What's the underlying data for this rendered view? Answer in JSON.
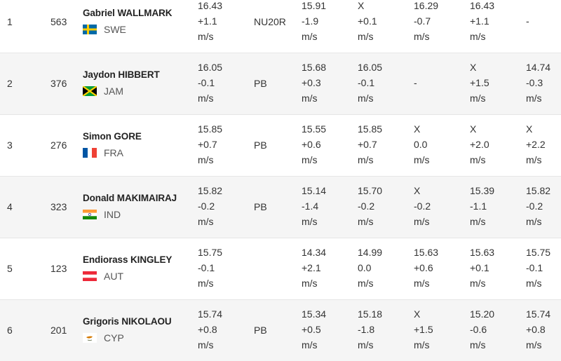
{
  "rows": [
    {
      "rank": "1",
      "bib": "563",
      "name": "Gabriel WALLMARK",
      "country": "SWE",
      "flag": "sweden-flag",
      "best": {
        "dist": "16.43",
        "wind": "+1.1",
        "unit": "m/s"
      },
      "note": "NU20R",
      "attempts": [
        {
          "dist": "15.91",
          "wind": "-1.9",
          "unit": "m/s"
        },
        {
          "dist": "X",
          "wind": "+0.1",
          "unit": "m/s"
        },
        {
          "dist": "16.29",
          "wind": "-0.7",
          "unit": "m/s"
        },
        {
          "dist": "16.43",
          "wind": "+1.1",
          "unit": "m/s"
        },
        {
          "dist": "",
          "wind": "-",
          "unit": ""
        }
      ]
    },
    {
      "rank": "2",
      "bib": "376",
      "name": "Jaydon HIBBERT",
      "country": "JAM",
      "flag": "jamaica-flag",
      "best": {
        "dist": "16.05",
        "wind": "-0.1",
        "unit": "m/s"
      },
      "note": "PB",
      "attempts": [
        {
          "dist": "15.68",
          "wind": "+0.3",
          "unit": "m/s"
        },
        {
          "dist": "16.05",
          "wind": "-0.1",
          "unit": "m/s"
        },
        {
          "dist": "",
          "wind": "-",
          "unit": ""
        },
        {
          "dist": "X",
          "wind": "+1.5",
          "unit": "m/s"
        },
        {
          "dist": "14.74",
          "wind": "-0.3",
          "unit": "m/s"
        }
      ]
    },
    {
      "rank": "3",
      "bib": "276",
      "name": "Simon GORE",
      "country": "FRA",
      "flag": "france-flag",
      "best": {
        "dist": "15.85",
        "wind": "+0.7",
        "unit": "m/s"
      },
      "note": "PB",
      "attempts": [
        {
          "dist": "15.55",
          "wind": "+0.6",
          "unit": "m/s"
        },
        {
          "dist": "15.85",
          "wind": "+0.7",
          "unit": "m/s"
        },
        {
          "dist": "X",
          "wind": "0.0",
          "unit": "m/s"
        },
        {
          "dist": "X",
          "wind": "+2.0",
          "unit": "m/s"
        },
        {
          "dist": "X",
          "wind": "+2.2",
          "unit": "m/s"
        }
      ]
    },
    {
      "rank": "4",
      "bib": "323",
      "name": "Donald MAKIMAIRAJ",
      "country": "IND",
      "flag": "india-flag",
      "best": {
        "dist": "15.82",
        "wind": "-0.2",
        "unit": "m/s"
      },
      "note": "PB",
      "attempts": [
        {
          "dist": "15.14",
          "wind": "-1.4",
          "unit": "m/s"
        },
        {
          "dist": "15.70",
          "wind": "-0.2",
          "unit": "m/s"
        },
        {
          "dist": "X",
          "wind": "-0.2",
          "unit": "m/s"
        },
        {
          "dist": "15.39",
          "wind": "-1.1",
          "unit": "m/s"
        },
        {
          "dist": "15.82",
          "wind": "-0.2",
          "unit": "m/s"
        }
      ]
    },
    {
      "rank": "5",
      "bib": "123",
      "name": "Endiorass KINGLEY",
      "country": "AUT",
      "flag": "austria-flag",
      "best": {
        "dist": "15.75",
        "wind": "-0.1",
        "unit": "m/s"
      },
      "note": "",
      "attempts": [
        {
          "dist": "14.34",
          "wind": "+2.1",
          "unit": "m/s"
        },
        {
          "dist": "14.99",
          "wind": "0.0",
          "unit": "m/s"
        },
        {
          "dist": "15.63",
          "wind": "+0.6",
          "unit": "m/s"
        },
        {
          "dist": "15.63",
          "wind": "+0.1",
          "unit": "m/s"
        },
        {
          "dist": "15.75",
          "wind": "-0.1",
          "unit": "m/s"
        }
      ]
    },
    {
      "rank": "6",
      "bib": "201",
      "name": "Grigoris NIKOLAOU",
      "country": "CYP",
      "flag": "cyprus-flag",
      "best": {
        "dist": "15.74",
        "wind": "+0.8",
        "unit": "m/s"
      },
      "note": "PB",
      "attempts": [
        {
          "dist": "15.34",
          "wind": "+0.5",
          "unit": "m/s"
        },
        {
          "dist": "15.18",
          "wind": "-1.8",
          "unit": "m/s"
        },
        {
          "dist": "X",
          "wind": "+1.5",
          "unit": "m/s"
        },
        {
          "dist": "15.20",
          "wind": "-0.6",
          "unit": "m/s"
        },
        {
          "dist": "15.74",
          "wind": "+0.8",
          "unit": "m/s"
        }
      ]
    }
  ],
  "colors": {
    "row_alt": "#f5f5f5",
    "text": "#333333",
    "divider": "#e6e6e6"
  }
}
